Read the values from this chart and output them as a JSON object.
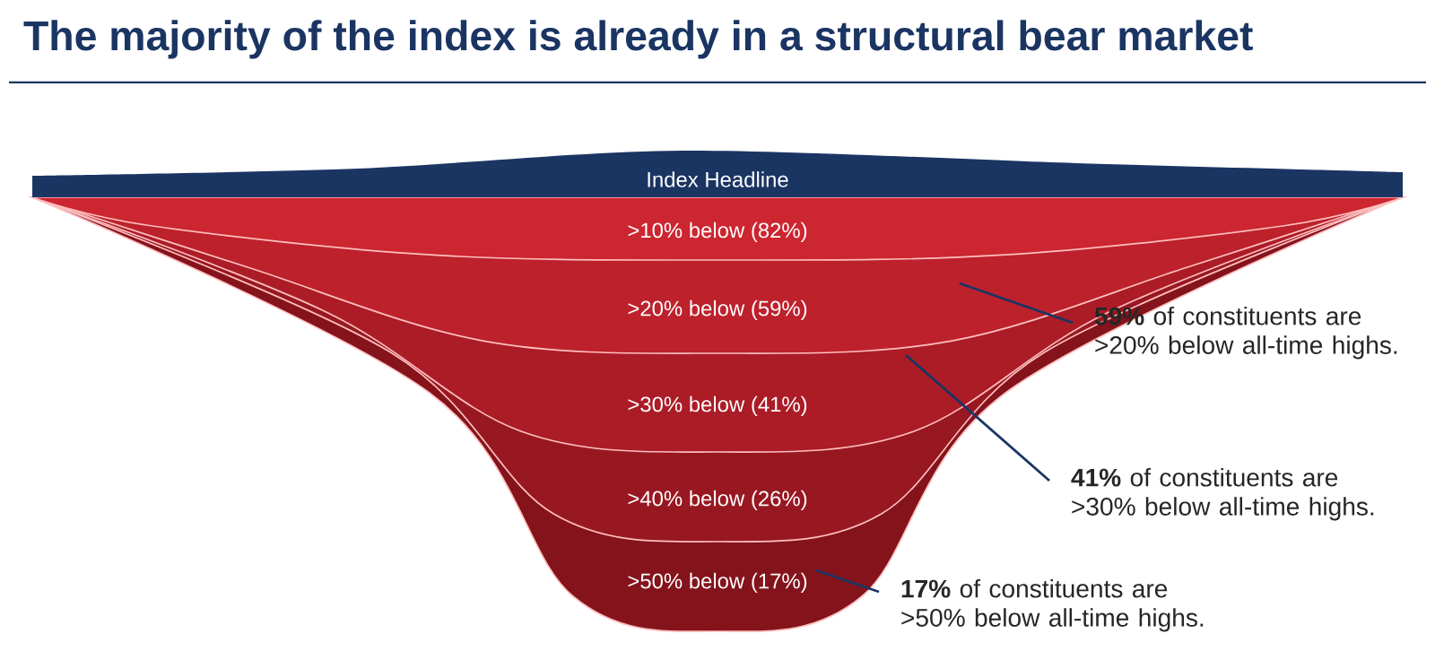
{
  "chart_data": {
    "type": "other",
    "title": "The majority of the index is already in a structural bear market",
    "categories": [
      "Index Headline",
      ">10% below",
      ">20% below",
      ">30% below",
      ">40% below",
      ">50% below"
    ],
    "values": [
      null,
      82,
      59,
      41,
      26,
      17
    ],
    "value_labels": [
      null,
      "(82%)",
      "(59%)",
      "(41%)",
      "(26%)",
      "(17%)"
    ],
    "colors": [
      "#1b3563",
      "#cc2630",
      "#bd212c",
      "#ab1c27",
      "#981822",
      "#84131c"
    ],
    "annotations": [
      "**59%** of constituents are >20% below all-time highs.",
      "**41%** of constituents are >30% below all-time highs.",
      "**17%** of constituents are >50% below all-time highs."
    ]
  }
}
